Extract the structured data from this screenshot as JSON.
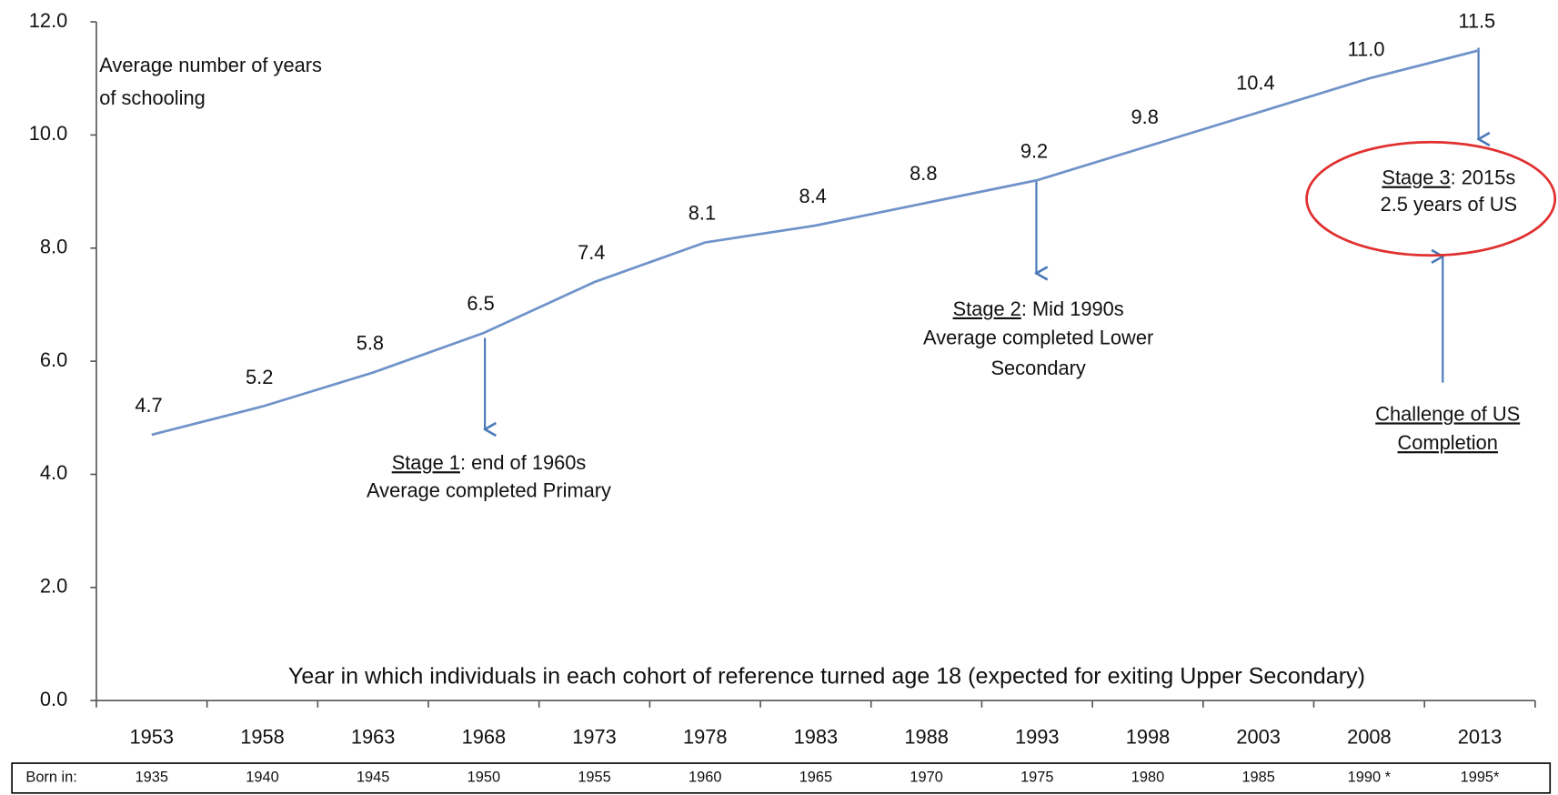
{
  "chart_data": {
    "type": "line",
    "y_axis_label": [
      "Average number of years",
      "of schooling"
    ],
    "x_axis_label": "Year in which individuals in each cohort of reference turned age 18 (expected for exiting Upper Secondary)",
    "categories": [
      "1953",
      "1958",
      "1963",
      "1968",
      "1973",
      "1978",
      "1983",
      "1988",
      "1993",
      "1998",
      "2003",
      "2008",
      "2013"
    ],
    "series": [
      {
        "name": "Average number of years of schooling",
        "color": "#6f93c9",
        "values": [
          4.7,
          5.2,
          5.8,
          6.5,
          7.4,
          8.1,
          8.4,
          8.8,
          9.2,
          9.8,
          10.4,
          11.0,
          11.5
        ],
        "value_labels": [
          "4.7",
          "5.2",
          "5.8",
          "6.5",
          "7.4",
          "8.1",
          "8.4",
          "8.8",
          "9.2",
          "9.8",
          "10.4",
          "11.0",
          "11.5"
        ]
      }
    ],
    "ylim": [
      0,
      12
    ],
    "yticks": [
      {
        "value": 0,
        "label": "0.0"
      },
      {
        "value": 2,
        "label": "2.0"
      },
      {
        "value": 4,
        "label": "4.0"
      },
      {
        "value": 6,
        "label": "6.0"
      },
      {
        "value": 8,
        "label": "8.0"
      },
      {
        "value": 10,
        "label": "10.0"
      },
      {
        "value": 12,
        "label": "12.0"
      }
    ],
    "grid": false,
    "born_in": {
      "label": "Born in:",
      "values": [
        "1935",
        "1940",
        "1945",
        "1950",
        "1955",
        "1960",
        "1965",
        "1970",
        "1975",
        "1980",
        "1985",
        "1990 *",
        "1995*"
      ]
    },
    "annotations": [
      {
        "underlined": "Stage 1",
        "text": ": end  of 1960s",
        "lines": [
          "Average  completed  Primary"
        ]
      },
      {
        "underlined": "Stage 2",
        "text": ": Mid 1990s",
        "lines": [
          "Average  completed  Lower",
          "Secondary"
        ]
      },
      {
        "underlined": "Stage 3",
        "text": ": 2015s",
        "lines": [
          "2.5  years  of US"
        ]
      },
      {
        "underlined_lines": [
          "Challenge of US",
          "Completion"
        ]
      }
    ]
  }
}
